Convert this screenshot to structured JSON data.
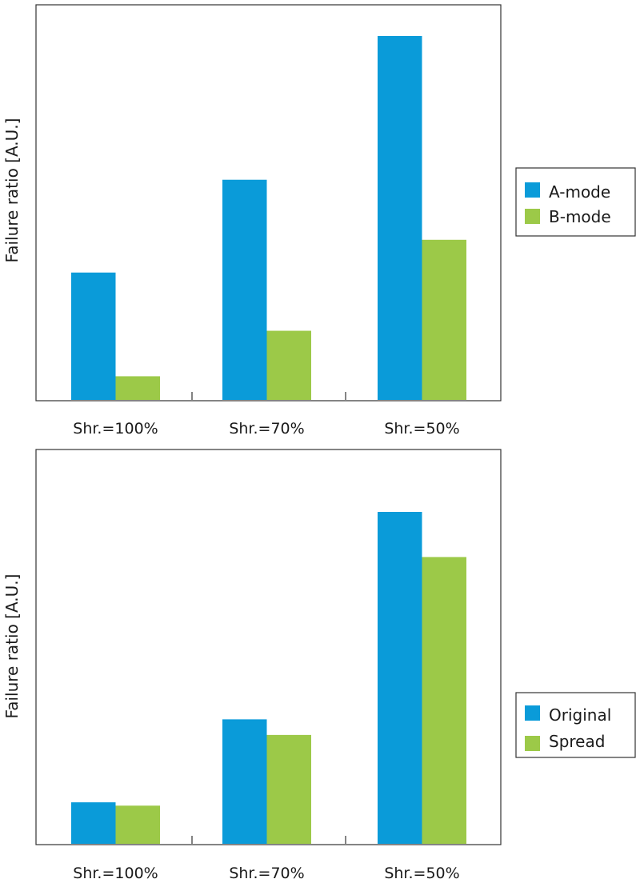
{
  "chart_data": [
    {
      "type": "bar",
      "ylabel": "Failure ratio [A.U.]",
      "categories": [
        "Shr.=100%",
        "Shr.=70%",
        "Shr.=50%"
      ],
      "ylim": [
        0,
        100
      ],
      "series": [
        {
          "name": "A-mode",
          "color": "#0a9bd9",
          "values": [
            35,
            60.5,
            100
          ]
        },
        {
          "name": "B-mode",
          "color": "#9cc948",
          "values": [
            6.5,
            19,
            44
          ]
        }
      ],
      "legend_position": "right"
    },
    {
      "type": "bar",
      "ylabel": "Failure ratio [A.U.]",
      "categories": [
        "Shr.=100%",
        "Shr.=70%",
        "Shr.=50%"
      ],
      "ylim": [
        0,
        100
      ],
      "series": [
        {
          "name": "Original",
          "color": "#0a9bd9",
          "values": [
            12.5,
            37.5,
            100
          ]
        },
        {
          "name": "Spread",
          "color": "#9cc948",
          "values": [
            11.5,
            32.8,
            86.4
          ]
        }
      ],
      "legend_position": "right"
    }
  ]
}
